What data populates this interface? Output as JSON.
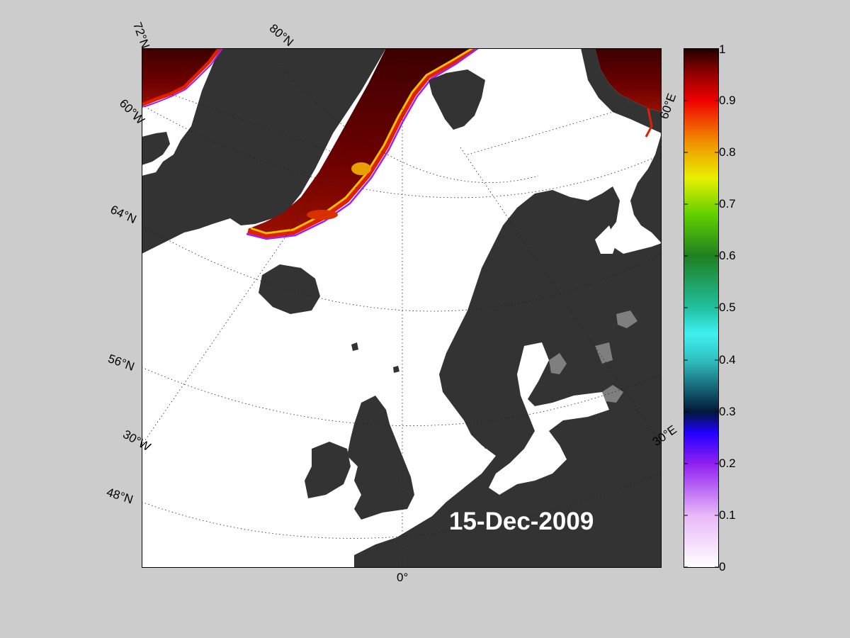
{
  "map": {
    "date_label": "15-Dec-2009",
    "graticule_labels": {
      "lat": [
        "72°N",
        "64°N",
        "56°N",
        "48°N"
      ],
      "lat_along_meridian": [
        "80°N"
      ],
      "lon": [
        "60°W",
        "30°W",
        "0°",
        "30°E",
        "60°E"
      ]
    },
    "colors": {
      "background": "#cccccc",
      "ocean_open": "#ffffff",
      "land": "#333333",
      "lake": "#7f7f7f",
      "ice_high": "#5a0000"
    }
  },
  "colorbar": {
    "ticks": [
      "0",
      "0.1",
      "0.2",
      "0.3",
      "0.4",
      "0.5",
      "0.6",
      "0.7",
      "0.8",
      "0.9",
      "1"
    ],
    "min": 0,
    "max": 1
  }
}
